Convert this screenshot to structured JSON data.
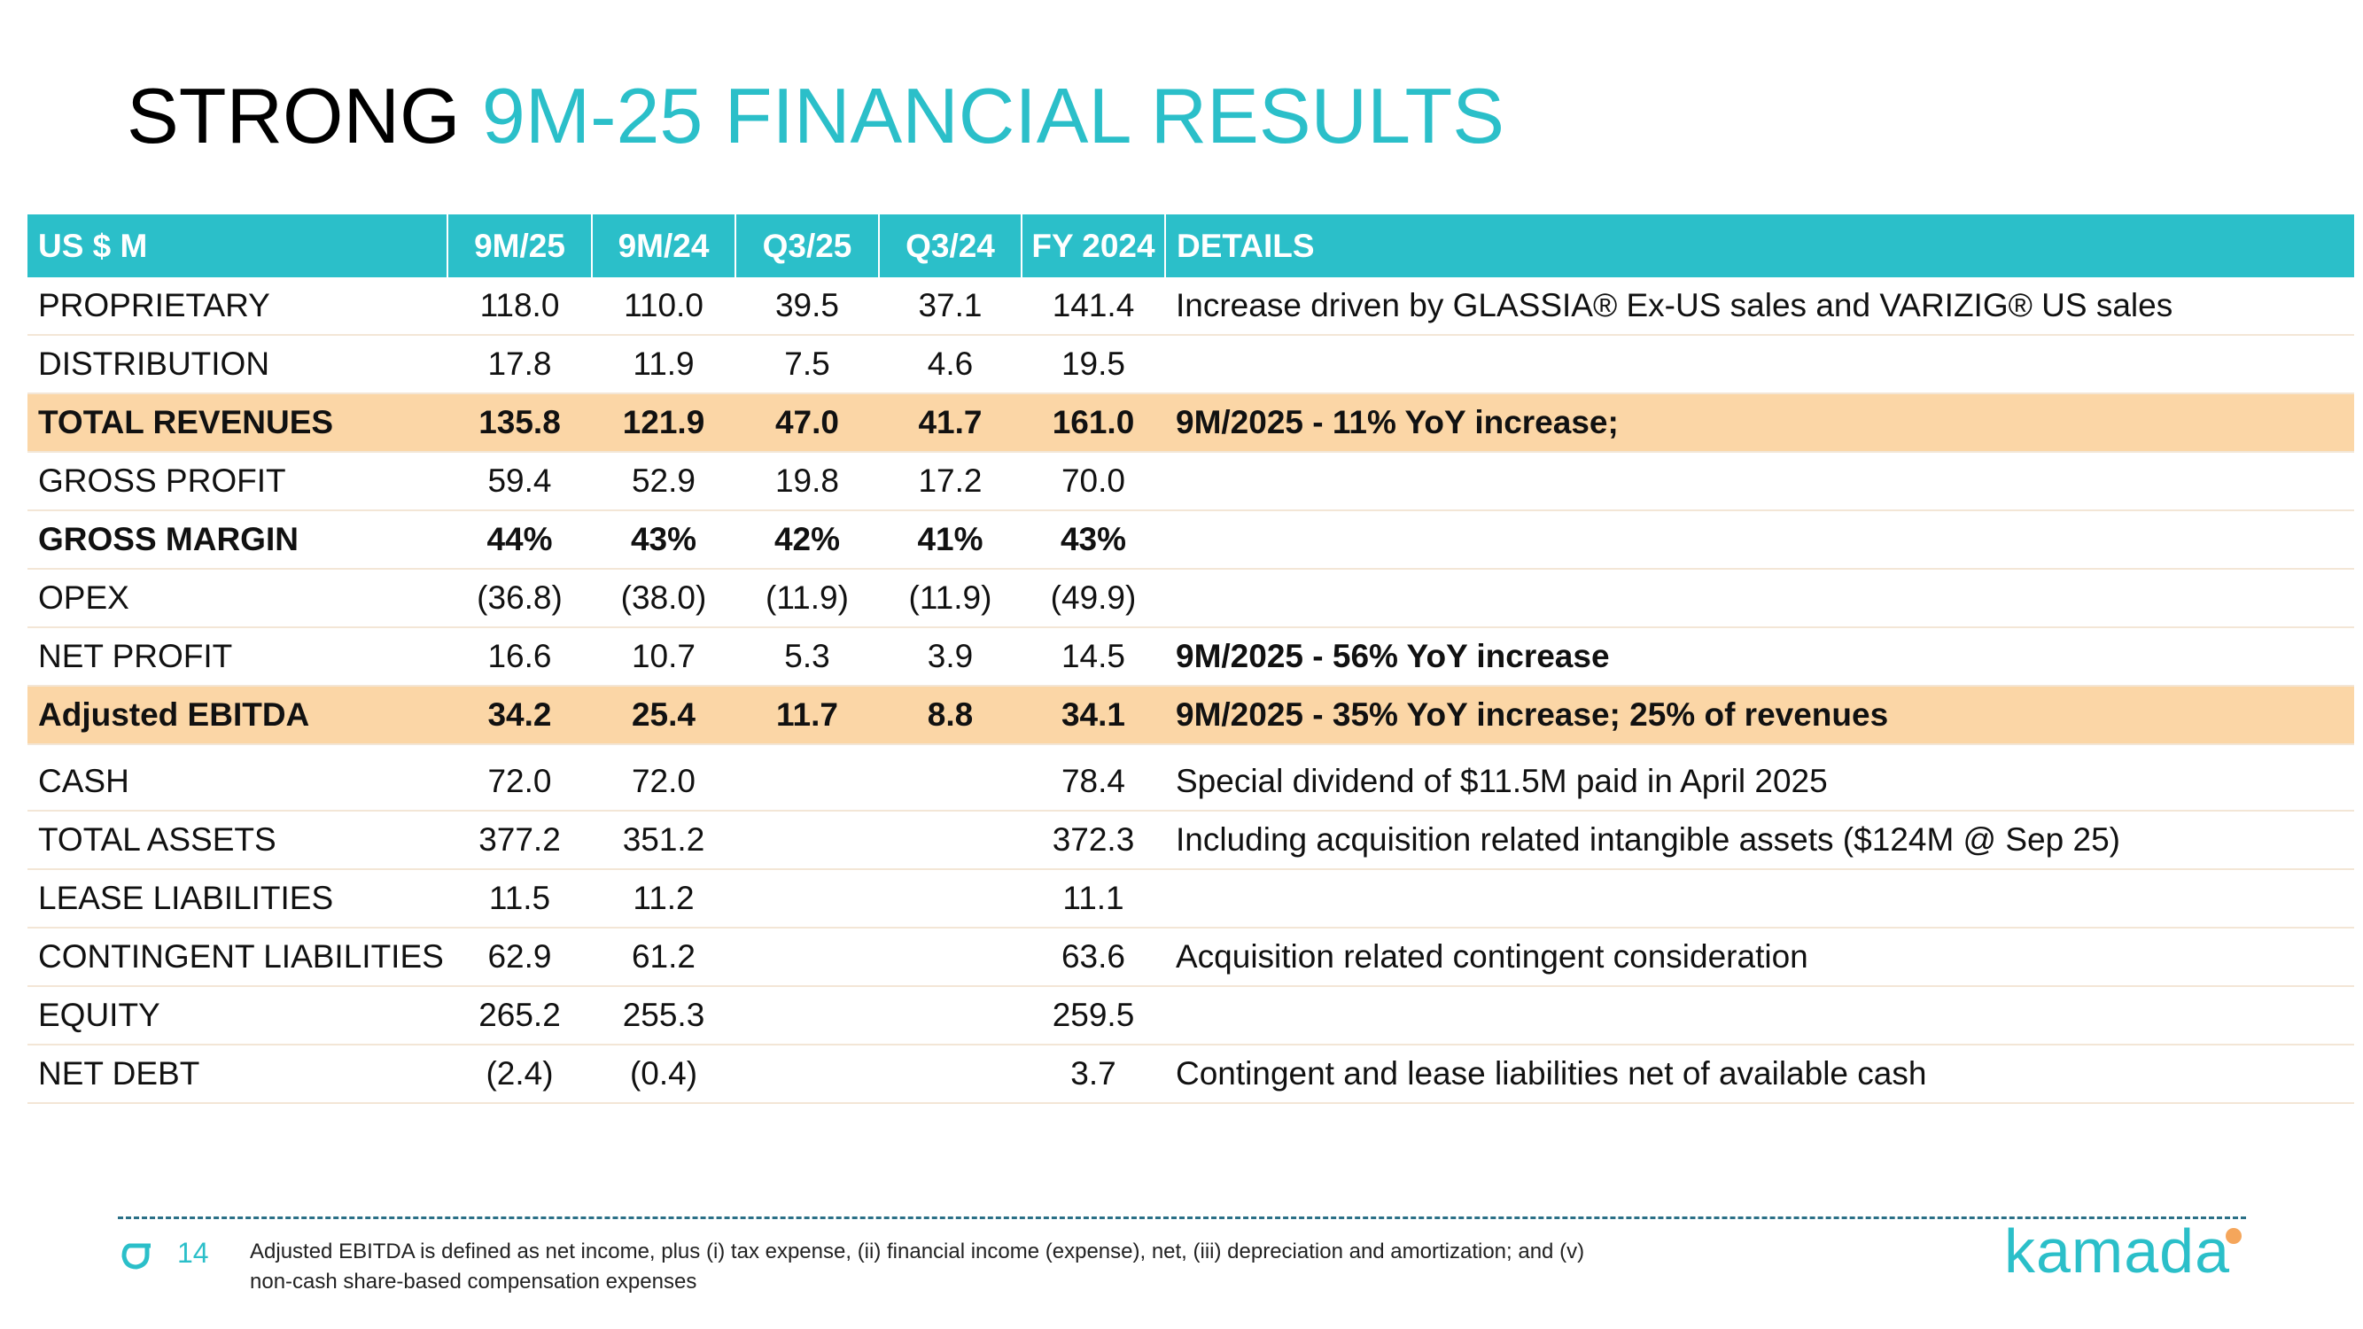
{
  "title": {
    "lead": "STRONG",
    "rest": "9M-25 FINANCIAL RESULTS"
  },
  "table": {
    "header": [
      "US $ M",
      "9M/25",
      "9M/24",
      "Q3/25",
      "Q3/24",
      "FY 2024",
      "DETAILS"
    ],
    "sections": [
      [
        {
          "cells": [
            "PROPRIETARY",
            "118.0",
            "110.0",
            "39.5",
            "37.1",
            "141.4",
            "Increase driven by GLASSIA® Ex-US sales and VARIZIG® US sales"
          ]
        },
        {
          "cells": [
            "DISTRIBUTION",
            "17.8",
            "11.9",
            "7.5",
            "4.6",
            "19.5",
            null
          ]
        },
        {
          "cells": [
            "TOTAL REVENUES",
            "135.8",
            "121.9",
            "47.0",
            "41.7",
            "161.0",
            "9M/2025 - 11% YoY increase;"
          ],
          "bold": true,
          "highlight": true
        },
        {
          "cells": [
            "GROSS PROFIT",
            "59.4",
            "52.9",
            "19.8",
            "17.2",
            "70.0",
            null
          ]
        },
        {
          "cells": [
            "GROSS MARGIN",
            "44%",
            "43%",
            "42%",
            "41%",
            "43%",
            null
          ],
          "bold": true
        },
        {
          "cells": [
            "OPEX",
            "(36.8)",
            "(38.0)",
            "(11.9)",
            "(11.9)",
            "(49.9)",
            null
          ]
        },
        {
          "cells": [
            "NET PROFIT",
            "16.6",
            "10.7",
            "5.3",
            "3.9",
            "14.5",
            "9M/2025 - 56% YoY increase"
          ],
          "bold_details": true
        },
        {
          "cells": [
            "Adjusted EBITDA",
            "34.2",
            "25.4",
            "11.7",
            "8.8",
            "34.1",
            "9M/2025 - 35% YoY increase; 25% of revenues"
          ],
          "bold": true,
          "highlight": true
        }
      ],
      [
        {
          "cells": [
            "CASH",
            "72.0",
            "72.0",
            null,
            null,
            "78.4",
            "Special dividend of $11.5M paid in April 2025"
          ]
        },
        {
          "cells": [
            "TOTAL ASSETS",
            "377.2",
            "351.2",
            null,
            null,
            "372.3",
            "Including acquisition related intangible assets ($124M @ Sep 25)"
          ]
        },
        {
          "cells": [
            "LEASE LIABILITIES",
            "11.5",
            "11.2",
            null,
            null,
            "11.1",
            null
          ]
        },
        {
          "cells": [
            "CONTINGENT LIABILITIES",
            "62.9",
            "61.2",
            null,
            null,
            "63.6",
            "Acquisition related contingent consideration"
          ]
        },
        {
          "cells": [
            "EQUITY",
            "265.2",
            "255.3",
            null,
            null,
            "259.5",
            null
          ]
        },
        {
          "cells": [
            "NET DEBT",
            "(2.4)",
            "(0.4)",
            null,
            null,
            "3.7",
            "Contingent and lease liabilities net of available cash"
          ]
        }
      ]
    ]
  },
  "footer": {
    "page": "14",
    "note_lines": [
      "Adjusted EBITDA is defined as net income, plus (i) tax expense, (ii) financial income (expense), net, (iii) depreciation and amortization; and (v)",
      "non-cash share-based compensation expenses"
    ],
    "logo": "kamada"
  }
}
